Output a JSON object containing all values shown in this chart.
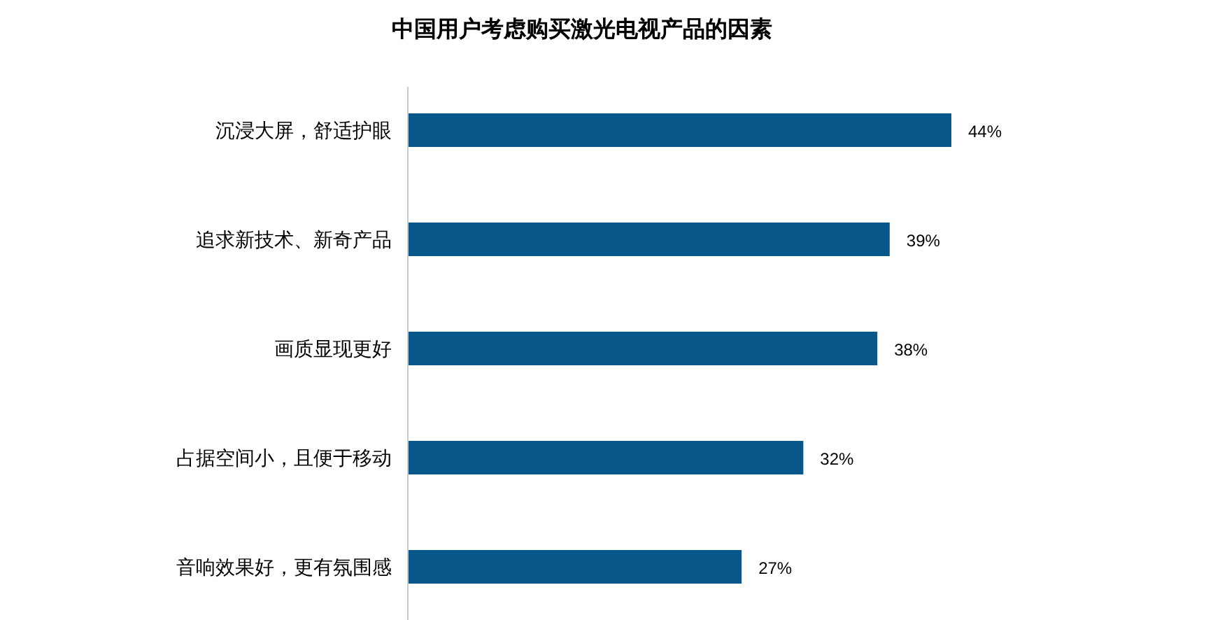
{
  "chart_data": {
    "type": "bar",
    "orientation": "horizontal",
    "title": "中国用户考虑购买激光电视产品的因素",
    "categories": [
      "沉浸大屏，舒适护眼",
      "追求新技术、新奇产品",
      "画质显现更好",
      "占据空间小，且便于移动",
      "音响效果好，更有氛围感"
    ],
    "values": [
      44,
      39,
      38,
      32,
      27
    ],
    "color": "#08568a",
    "value_labels": [
      "44%",
      "39%",
      "38%",
      "32%",
      "27%"
    ]
  }
}
